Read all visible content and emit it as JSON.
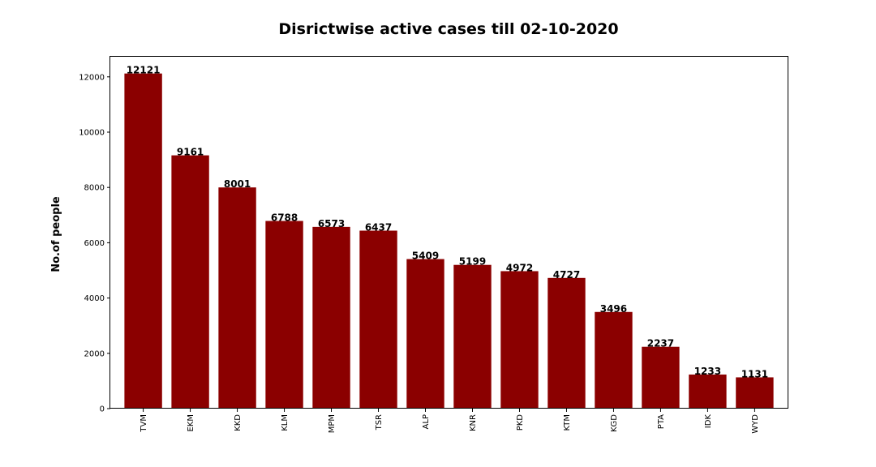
{
  "chart_data": {
    "type": "bar",
    "title": "Disrictwise active cases till 02-10-2020",
    "xlabel": "",
    "ylabel": "No.of people",
    "categories": [
      "TVM",
      "EKM",
      "KKD",
      "KLM",
      "MPM",
      "TSR",
      "ALP",
      "KNR",
      "PKD",
      "KTM",
      "KGD",
      "PTA",
      "IDK",
      "WYD"
    ],
    "values": [
      12121,
      9161,
      8001,
      6788,
      6573,
      6437,
      5409,
      5199,
      4972,
      4727,
      3496,
      2237,
      1233,
      1131
    ],
    "ylim": [
      0,
      12727
    ],
    "yticks": [
      0,
      2000,
      4000,
      6000,
      8000,
      10000,
      12000
    ],
    "grid": false,
    "bar_color": "#8b0000"
  }
}
